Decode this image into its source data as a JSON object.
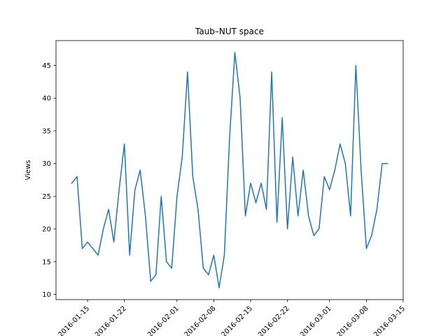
{
  "chart_data": {
    "type": "line",
    "title": "Taub–NUT space",
    "xlabel": "",
    "ylabel": "Views",
    "x_start": "2016-01-12",
    "x_end": "2016-03-12",
    "xlim": [
      "2016-01-09",
      "2016-03-15"
    ],
    "ylim": [
      9.2,
      48.8
    ],
    "xticks": [
      "2016-01-15",
      "2016-01-22",
      "2016-02-01",
      "2016-02-08",
      "2016-02-15",
      "2016-02-22",
      "2016-03-01",
      "2016-03-08",
      "2016-03-15"
    ],
    "yticks": [
      10,
      15,
      20,
      25,
      30,
      35,
      40,
      45
    ],
    "grid": false,
    "line_color": "#1f77b4",
    "series": [
      {
        "name": "",
        "values": [
          27,
          28,
          17,
          18,
          17,
          16,
          20,
          23,
          18,
          26,
          33,
          16,
          26,
          29,
          22,
          12,
          13,
          25,
          15,
          14,
          25,
          31,
          44,
          28,
          23,
          14,
          13,
          16,
          11,
          16,
          34,
          47,
          40,
          22,
          27,
          24,
          27,
          23,
          44,
          21,
          37,
          20,
          31,
          22,
          29,
          22,
          19,
          20,
          28,
          26,
          29,
          33,
          30,
          22,
          45,
          29,
          17,
          19,
          23,
          30,
          30
        ]
      }
    ]
  }
}
